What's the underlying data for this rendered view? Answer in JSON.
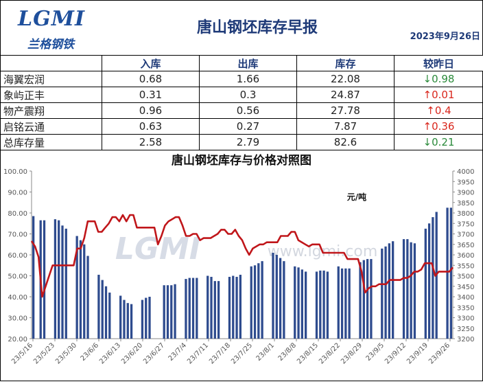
{
  "header": {
    "logo": "LGMI",
    "logo_sub": "兰格钢铁",
    "title": "唐山钢坯库存早报",
    "date": "2023年9月26日"
  },
  "table": {
    "columns": [
      "",
      "入库",
      "出库",
      "库存",
      "较昨日"
    ],
    "rows": [
      {
        "name": "海翼宏润",
        "in": "0.68",
        "out": "1.66",
        "stock": "22.08",
        "change": "0.98",
        "dir": "down",
        "arrow": "↓"
      },
      {
        "name": "象屿正丰",
        "in": "0.31",
        "out": "0.3",
        "stock": "24.87",
        "change": "0.01",
        "dir": "up",
        "arrow": "↑"
      },
      {
        "name": "物产震翔",
        "in": "0.96",
        "out": "0.56",
        "stock": "27.78",
        "change": "0.4",
        "dir": "up",
        "arrow": "↑"
      },
      {
        "name": "启铭云通",
        "in": "0.63",
        "out": "0.27",
        "stock": "7.87",
        "change": "0.36",
        "dir": "up",
        "arrow": "↑"
      },
      {
        "name": "总库存量",
        "in": "2.58",
        "out": "2.79",
        "stock": "82.6",
        "change": "0.21",
        "dir": "down",
        "arrow": "↓"
      }
    ]
  },
  "colors": {
    "bar": "#2e4b8e",
    "line": "#c0161a",
    "up": "#d9261c",
    "down": "#2a8a3a"
  },
  "chart_data": {
    "type": "bar+line",
    "title": "唐山钢坯库存与价格对照图",
    "unit_label": "元/吨",
    "watermark": "www.lgmi.com",
    "ylim_left": [
      20,
      100
    ],
    "ylim_right": [
      3200,
      4000
    ],
    "left_ticks": [
      "100.00",
      "90.00",
      "80.00",
      "70.00",
      "60.00",
      "50.00",
      "40.00",
      "30.00",
      "20.00"
    ],
    "right_ticks": [
      "4000",
      "3950",
      "3900",
      "3850",
      "3800",
      "3750",
      "3700",
      "3650",
      "3600",
      "3550",
      "3500",
      "3450",
      "3400",
      "3350",
      "3300",
      "3250",
      "3200"
    ],
    "x_labels": [
      "23/5/16",
      "23/5/23",
      "23/5/30",
      "23/6/6",
      "23/6/13",
      "23/6/20",
      "23/6/27",
      "23/7/4",
      "23/7/11",
      "23/7/18",
      "23/7/25",
      "23/8/1",
      "23/8/8",
      "23/8/15",
      "23/8/22",
      "23/8/29",
      "23/9/5",
      "23/9/12",
      "23/9/19",
      "23/9/26"
    ],
    "bars": [
      78.5,
      null,
      76.5,
      76.5,
      null,
      null,
      77,
      76.5,
      74,
      72.5,
      null,
      null,
      69,
      67,
      65,
      59.5,
      null,
      null,
      50.5,
      48,
      45,
      42,
      null,
      null,
      40.5,
      38.5,
      37,
      36.5,
      null,
      null,
      38.5,
      39.5,
      40,
      null,
      null,
      null,
      45.5,
      45.5,
      45.5,
      46,
      null,
      null,
      48.5,
      49,
      49,
      49,
      null,
      null,
      50,
      49.5,
      47.5,
      47.5,
      null,
      null,
      49.5,
      50,
      49.5,
      50.5,
      null,
      null,
      54.5,
      55,
      56,
      57,
      null,
      null,
      61,
      60,
      58.5,
      57,
      null,
      null,
      54.5,
      54,
      53,
      52,
      null,
      null,
      52,
      52.5,
      52.5,
      52,
      null,
      null,
      54.5,
      53.5,
      53.5,
      53.5,
      null,
      null,
      56.5,
      57.5,
      58,
      58,
      null,
      null,
      63,
      64,
      65.5,
      66.5,
      null,
      null,
      67.5,
      67.5,
      66,
      65.5,
      null,
      null,
      72.5,
      75,
      78,
      80.5,
      null,
      null,
      82.5,
      82.5
    ],
    "price": [
      3666,
      3640,
      3590,
      3400,
      3450,
      3500,
      3550,
      3550,
      3550,
      3550,
      3550,
      3550,
      3550,
      3630,
      3630,
      3680,
      3760,
      3760,
      3760,
      3710,
      3710,
      3730,
      3750,
      3780,
      3780,
      3760,
      3790,
      3760,
      3790,
      3790,
      3730,
      3730,
      3730,
      3730,
      3730,
      3730,
      3650,
      3690,
      3740,
      3760,
      3770,
      3780,
      3780,
      3740,
      3690,
      3690,
      3700,
      3700,
      3670,
      3680,
      3680,
      3680,
      3690,
      3700,
      3720,
      3720,
      3700,
      3700,
      3720,
      3690,
      3670,
      3630,
      3600,
      3630,
      3640,
      3650,
      3650,
      3660,
      3660,
      3660,
      3660,
      3690,
      3690,
      3690,
      3710,
      3710,
      3670,
      3660,
      3650,
      3640,
      3650,
      3650,
      3650,
      3610,
      3610,
      3610,
      3610,
      3610,
      3610,
      3610,
      3580,
      3580,
      3580,
      3580,
      3520,
      3420,
      3440,
      3450,
      3450,
      3460,
      3460,
      3460,
      3480,
      3480,
      3480,
      3480,
      3490,
      3490,
      3500,
      3520,
      3520,
      3530,
      3560,
      3560,
      3560,
      3500,
      3520,
      3520,
      3520,
      3520,
      3540
    ]
  }
}
